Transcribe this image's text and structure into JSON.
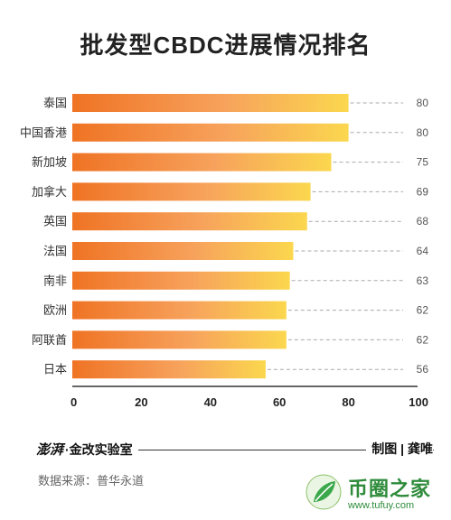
{
  "header": {
    "title": "批发型CBDC进展情况排名"
  },
  "chart_data": {
    "type": "bar",
    "orientation": "horizontal",
    "title": "批发型CBDC进展情况排名",
    "categories": [
      "泰国",
      "中国香港",
      "新加坡",
      "加拿大",
      "英国",
      "法国",
      "南非",
      "欧洲",
      "阿联酋",
      "日本"
    ],
    "values": [
      80,
      80,
      75,
      69,
      68,
      64,
      63,
      62,
      62,
      56
    ],
    "xlim": [
      0,
      100
    ],
    "xticks": [
      0,
      20,
      40,
      60,
      80,
      100
    ],
    "grid": false,
    "value_labels": "right",
    "colors": {
      "bar_start": "#ef7324",
      "bar_mid": "#f7a25c",
      "bar_end": "#fbd74e"
    }
  },
  "footer": {
    "brand_logo": "澎湃",
    "brand_name": "·金改实验室",
    "credit": "制图 | 龚唯",
    "source": "数据来源：普华永道"
  },
  "watermark": {
    "name": "币圈之家",
    "url": "www.tufuy.com"
  }
}
